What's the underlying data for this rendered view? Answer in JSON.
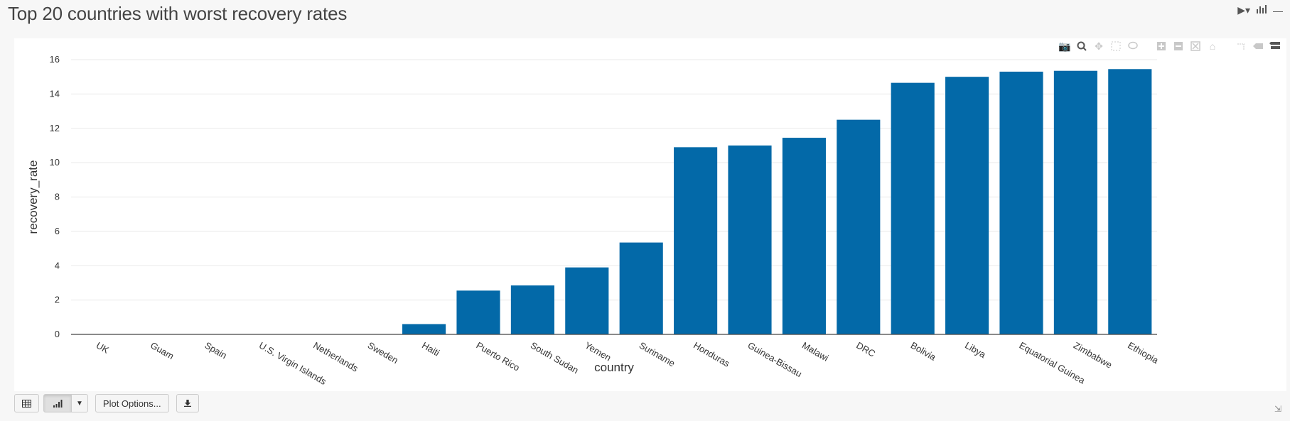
{
  "page": {
    "title": "Top 20 countries with worst recovery rates"
  },
  "cell_tools": {
    "run_icon": "run-dropdown-icon",
    "chart_icon": "bar-chart-icon",
    "collapse_icon": "minus-icon"
  },
  "modebar": {
    "icons": [
      "camera-icon",
      "zoom-icon",
      "pan-icon",
      "box-select-icon",
      "lasso-icon",
      "zoom-in-icon",
      "zoom-out-icon",
      "autoscale-icon",
      "home-icon",
      "spike-lines-icon",
      "hover-closest-icon",
      "hover-compare-icon"
    ]
  },
  "bottom_bar": {
    "table_icon": "table-icon",
    "chart_icon": "bar-chart-icon",
    "dropdown_icon": "caret-down-icon",
    "plot_options_label": "Plot Options...",
    "download_icon": "download-icon"
  },
  "colors": {
    "bar": "#0369a8",
    "grid": "#e9e9e9",
    "axis_text": "#333333"
  },
  "chart_data": {
    "type": "bar",
    "categories": [
      "UK",
      "Guam",
      "Spain",
      "U.S. Virgin Islands",
      "Netherlands",
      "Sweden",
      "Haiti",
      "Puerto Rico",
      "South Sudan",
      "Yemen",
      "Suriname",
      "Honduras",
      "Guinea-Bissau",
      "Malawi",
      "DRC",
      "Bolivia",
      "Libya",
      "Equatorial Guinea",
      "Zimbabwe",
      "Ethiopia"
    ],
    "values": [
      0,
      0,
      0,
      0,
      0,
      0,
      0.6,
      2.55,
      2.85,
      3.9,
      5.35,
      10.9,
      11.0,
      11.45,
      12.5,
      14.65,
      15.0,
      15.3,
      15.35,
      15.45
    ],
    "xlabel": "country",
    "ylabel": "recovery_rate",
    "ylim": [
      0,
      16
    ],
    "yticks": [
      0,
      2,
      4,
      6,
      8,
      10,
      12,
      14,
      16
    ],
    "grid": true
  }
}
